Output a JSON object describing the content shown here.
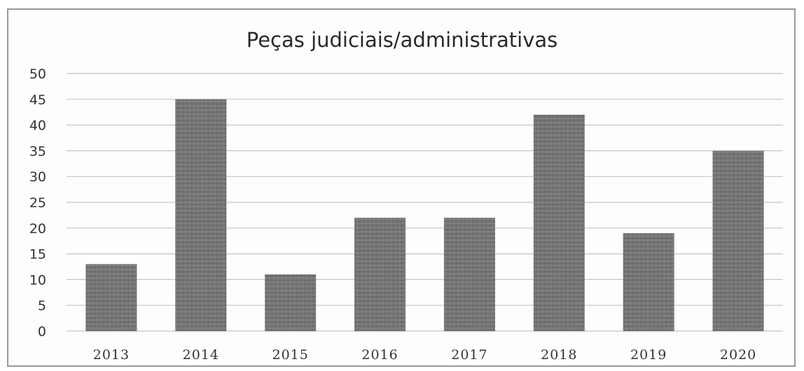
{
  "chart_data": {
    "type": "bar",
    "title": "Peças judiciais/administrativas",
    "xlabel": "",
    "ylabel": "",
    "categories": [
      "2013",
      "2014",
      "2015",
      "2016",
      "2017",
      "2018",
      "2019",
      "2020"
    ],
    "values": [
      13,
      45,
      11,
      22,
      22,
      42,
      19,
      35
    ],
    "ylim": [
      0,
      50
    ],
    "yticks": [
      "0",
      "5",
      "10",
      "15",
      "20",
      "25",
      "30",
      "35",
      "40",
      "45",
      "50"
    ],
    "grid": true,
    "legend": "none",
    "bar_color": "#7d7d7d"
  }
}
